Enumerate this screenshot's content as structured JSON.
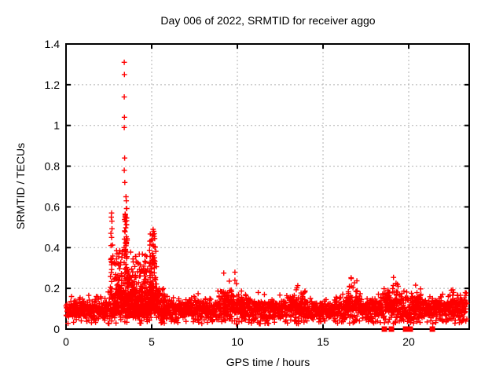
{
  "chart_data": {
    "type": "scatter",
    "title": "Day 006 of 2022, SRMTID for receiver aggo",
    "xlabel": "GPS time / hours",
    "ylabel": "SRMTID / TECUs",
    "xlim": [
      0,
      23.53
    ],
    "ylim": [
      0,
      1.4
    ],
    "grid": true,
    "legend": "none",
    "xticks": [
      {
        "v": 0,
        "label": "0"
      },
      {
        "v": 5,
        "label": "5"
      },
      {
        "v": 10,
        "label": "10"
      },
      {
        "v": 15,
        "label": "15"
      },
      {
        "v": 20,
        "label": "20"
      }
    ],
    "yticks": [
      {
        "v": 0,
        "label": "0"
      },
      {
        "v": 0.2,
        "label": "0.2"
      },
      {
        "v": 0.4,
        "label": "0.4"
      },
      {
        "v": 0.6,
        "label": "0.6"
      },
      {
        "v": 0.8,
        "label": "0.8"
      },
      {
        "v": 1.0,
        "label": "1"
      },
      {
        "v": 1.2,
        "label": "1.2"
      },
      {
        "v": 1.4,
        "label": "1.4"
      }
    ],
    "marker_style": "plus",
    "marker_color": "#ff0000",
    "grid_color": "#b0b0b0",
    "border_color": "#000000",
    "seed": 1337,
    "peak_points": [
      [
        3.4,
        1.31
      ],
      [
        3.41,
        1.25
      ],
      [
        3.4,
        1.14
      ],
      [
        3.41,
        1.04
      ],
      [
        3.4,
        0.99
      ],
      [
        3.42,
        0.84
      ],
      [
        3.4,
        0.78
      ],
      [
        3.43,
        0.72
      ],
      [
        3.5,
        0.65
      ],
      [
        3.52,
        0.63
      ],
      [
        2.66,
        0.57
      ],
      [
        2.64,
        0.55
      ],
      [
        2.68,
        0.53
      ],
      [
        2.62,
        0.47
      ],
      [
        2.66,
        0.45
      ],
      [
        5.08,
        0.49
      ],
      [
        5.12,
        0.48
      ],
      [
        5.05,
        0.46
      ]
    ],
    "baseline_segments": [
      {
        "x0": 0.0,
        "x1": 2.45,
        "mean": 0.095,
        "sd": 0.028,
        "rate": 105
      },
      {
        "x0": 2.45,
        "x1": 3.0,
        "mean": 0.105,
        "sd": 0.035,
        "rate": 105
      },
      {
        "x0": 3.0,
        "x1": 4.2,
        "mean": 0.125,
        "sd": 0.048,
        "rate": 105
      },
      {
        "x0": 4.2,
        "x1": 5.5,
        "mean": 0.115,
        "sd": 0.045,
        "rate": 105
      },
      {
        "x0": 5.5,
        "x1": 8.8,
        "mean": 0.092,
        "sd": 0.028,
        "rate": 105
      },
      {
        "x0": 8.8,
        "x1": 10.1,
        "mean": 0.108,
        "sd": 0.038,
        "rate": 105
      },
      {
        "x0": 10.1,
        "x1": 13.2,
        "mean": 0.096,
        "sd": 0.032,
        "rate": 105
      },
      {
        "x0": 13.2,
        "x1": 14.1,
        "mean": 0.102,
        "sd": 0.036,
        "rate": 105
      },
      {
        "x0": 14.1,
        "x1": 16.35,
        "mean": 0.09,
        "sd": 0.028,
        "rate": 105
      },
      {
        "x0": 16.35,
        "x1": 17.15,
        "mean": 0.108,
        "sd": 0.04,
        "rate": 105
      },
      {
        "x0": 17.15,
        "x1": 18.45,
        "mean": 0.094,
        "sd": 0.03,
        "rate": 105
      },
      {
        "x0": 18.45,
        "x1": 19.4,
        "mean": 0.112,
        "sd": 0.045,
        "rate": 105
      },
      {
        "x0": 19.4,
        "x1": 20.75,
        "mean": 0.102,
        "sd": 0.038,
        "rate": 105
      },
      {
        "x0": 20.75,
        "x1": 22.3,
        "mean": 0.094,
        "sd": 0.03,
        "rate": 105
      },
      {
        "x0": 22.3,
        "x1": 23.4,
        "mean": 0.102,
        "sd": 0.035,
        "rate": 105
      }
    ],
    "clusters": [
      {
        "x0": 2.56,
        "x1": 2.78,
        "n": 26,
        "y0": 0.14,
        "y1": 0.5,
        "p": 1.5,
        "taper": 0.6
      },
      {
        "x0": 2.8,
        "x1": 3.3,
        "n": 85,
        "y0": 0.08,
        "y1": 0.4,
        "p": 2.2,
        "taper": 0
      },
      {
        "x0": 3.32,
        "x1": 3.68,
        "n": 80,
        "y0": 0.14,
        "y1": 0.62,
        "p": 1.6,
        "taper": 0.6
      },
      {
        "x0": 3.6,
        "x1": 4.78,
        "n": 235,
        "y0": 0.07,
        "y1": 0.38,
        "p": 2.3,
        "taper": 0
      },
      {
        "x0": 4.78,
        "x1": 5.34,
        "n": 115,
        "y0": 0.1,
        "y1": 0.47,
        "p": 1.8,
        "taper": 0.4
      },
      {
        "x0": 5.3,
        "x1": 5.8,
        "n": 45,
        "y0": 0.06,
        "y1": 0.2,
        "p": 1.6,
        "taper": 0
      },
      {
        "x0": 9.15,
        "x1": 10.0,
        "n": 40,
        "y0": 0.1,
        "y1": 0.28,
        "p": 2.2,
        "taper": 0
      },
      {
        "x0": 10.2,
        "x1": 10.75,
        "n": 18,
        "y0": 0.1,
        "y1": 0.21,
        "p": 2.0,
        "taper": 0
      },
      {
        "x0": 13.35,
        "x1": 13.95,
        "n": 22,
        "y0": 0.1,
        "y1": 0.25,
        "p": 2.2,
        "taper": 0
      },
      {
        "x0": 16.45,
        "x1": 17.05,
        "n": 30,
        "y0": 0.1,
        "y1": 0.27,
        "p": 2.2,
        "taper": 0
      },
      {
        "x0": 18.75,
        "x1": 19.35,
        "n": 35,
        "y0": 0.1,
        "y1": 0.28,
        "p": 2.2,
        "taper": 0
      },
      {
        "x0": 20.15,
        "x1": 20.7,
        "n": 25,
        "y0": 0.1,
        "y1": 0.22,
        "p": 2.0,
        "taper": 0
      },
      {
        "x0": 22.3,
        "x1": 23.35,
        "n": 30,
        "y0": 0.08,
        "y1": 0.2,
        "p": 2.0,
        "taper": 0
      }
    ],
    "zero_markers": {
      "marker": "filled-square",
      "x": [
        18.58,
        18.99,
        19.82,
        20.09,
        21.38
      ],
      "y": 0
    }
  }
}
